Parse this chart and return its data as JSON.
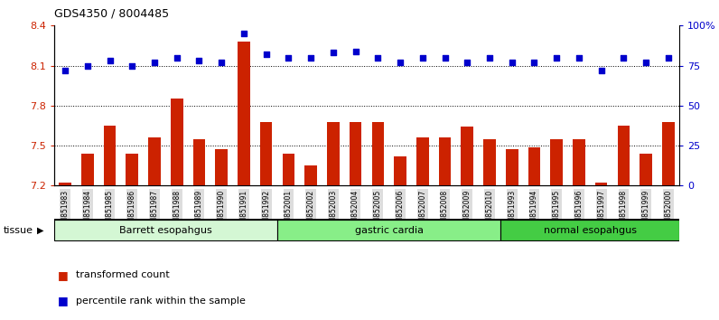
{
  "title": "GDS4350 / 8004485",
  "samples": [
    "GSM851983",
    "GSM851984",
    "GSM851985",
    "GSM851986",
    "GSM851987",
    "GSM851988",
    "GSM851989",
    "GSM851990",
    "GSM851991",
    "GSM851992",
    "GSM852001",
    "GSM852002",
    "GSM852003",
    "GSM852004",
    "GSM852005",
    "GSM852006",
    "GSM852007",
    "GSM852008",
    "GSM852009",
    "GSM852010",
    "GSM851993",
    "GSM851994",
    "GSM851995",
    "GSM851996",
    "GSM851997",
    "GSM851998",
    "GSM851999",
    "GSM852000"
  ],
  "bar_values": [
    7.22,
    7.44,
    7.65,
    7.44,
    7.56,
    7.85,
    7.55,
    7.47,
    8.28,
    7.68,
    7.44,
    7.35,
    7.68,
    7.68,
    7.68,
    7.42,
    7.56,
    7.56,
    7.64,
    7.55,
    7.47,
    7.49,
    7.55,
    7.55,
    7.22,
    7.65,
    7.44,
    7.68
  ],
  "percentile_values": [
    72,
    75,
    78,
    75,
    77,
    80,
    78,
    77,
    95,
    82,
    80,
    80,
    83,
    84,
    80,
    77,
    80,
    80,
    77,
    80,
    77,
    77,
    80,
    80,
    72,
    80,
    77,
    80
  ],
  "bar_color": "#cc2200",
  "point_color": "#0000cc",
  "ylim_left": [
    7.2,
    8.4
  ],
  "ylim_right": [
    0,
    100
  ],
  "yticks_left": [
    7.2,
    7.5,
    7.8,
    8.1,
    8.4
  ],
  "ytick_labels_left": [
    "7.2",
    "7.5",
    "7.8",
    "8.1",
    "8.4"
  ],
  "yticks_right": [
    0,
    25,
    50,
    75,
    100
  ],
  "ytick_labels_right": [
    "0",
    "25",
    "50",
    "75",
    "100%"
  ],
  "hlines": [
    7.5,
    7.8,
    8.1
  ],
  "groups": [
    {
      "label": "Barrett esopahgus",
      "start": 0,
      "end": 10,
      "color": "#d4f7d4"
    },
    {
      "label": "gastric cardia",
      "start": 10,
      "end": 20,
      "color": "#88ee88"
    },
    {
      "label": "normal esopahgus",
      "start": 20,
      "end": 28,
      "color": "#44cc44"
    }
  ],
  "tissue_label": "tissue",
  "legend_bar_label": "transformed count",
  "legend_point_label": "percentile rank within the sample",
  "bar_width": 0.55,
  "baseline": 7.2
}
